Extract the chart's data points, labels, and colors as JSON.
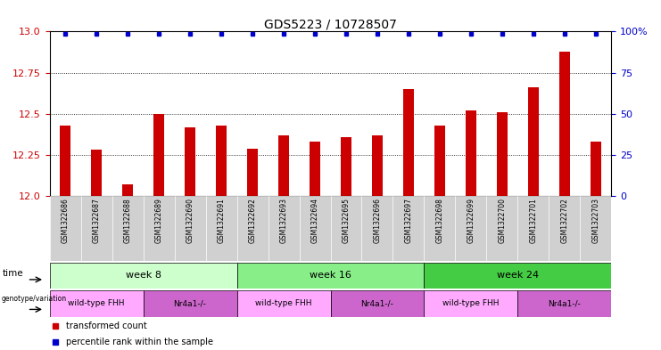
{
  "title": "GDS5223 / 10728507",
  "samples": [
    "GSM1322686",
    "GSM1322687",
    "GSM1322688",
    "GSM1322689",
    "GSM1322690",
    "GSM1322691",
    "GSM1322692",
    "GSM1322693",
    "GSM1322694",
    "GSM1322695",
    "GSM1322696",
    "GSM1322697",
    "GSM1322698",
    "GSM1322699",
    "GSM1322700",
    "GSM1322701",
    "GSM1322702",
    "GSM1322703"
  ],
  "bar_values": [
    12.43,
    12.28,
    12.07,
    12.5,
    12.42,
    12.43,
    12.29,
    12.37,
    12.33,
    12.36,
    12.37,
    12.65,
    12.43,
    12.52,
    12.51,
    12.66,
    12.88,
    12.33
  ],
  "percentile_values": [
    100,
    100,
    100,
    100,
    100,
    100,
    100,
    100,
    100,
    100,
    100,
    100,
    100,
    100,
    100,
    100,
    100,
    100
  ],
  "bar_color": "#cc0000",
  "percentile_color": "#0000cc",
  "ylim_left": [
    12.0,
    13.0
  ],
  "ylim_right": [
    0,
    100
  ],
  "yticks_left": [
    12.0,
    12.25,
    12.5,
    12.75,
    13.0
  ],
  "yticks_right": [
    0,
    25,
    50,
    75,
    100
  ],
  "grid_values": [
    12.25,
    12.5,
    12.75
  ],
  "time_groups": [
    {
      "label": "week 8",
      "start": 0,
      "end": 6,
      "color": "#ccffcc"
    },
    {
      "label": "week 16",
      "start": 6,
      "end": 12,
      "color": "#88ee88"
    },
    {
      "label": "week 24",
      "start": 12,
      "end": 18,
      "color": "#44cc44"
    }
  ],
  "geno_groups": [
    {
      "label": "wild-type FHH",
      "start": 0,
      "end": 3,
      "color": "#ffaaff"
    },
    {
      "label": "Nr4a1-/-",
      "start": 3,
      "end": 6,
      "color": "#cc66cc"
    },
    {
      "label": "wild-type FHH",
      "start": 6,
      "end": 9,
      "color": "#ffaaff"
    },
    {
      "label": "Nr4a1-/-",
      "start": 9,
      "end": 12,
      "color": "#cc66cc"
    },
    {
      "label": "wild-type FHH",
      "start": 12,
      "end": 15,
      "color": "#ffaaff"
    },
    {
      "label": "Nr4a1-/-",
      "start": 15,
      "end": 18,
      "color": "#cc66cc"
    }
  ],
  "legend_tc_label": "transformed count",
  "legend_pr_label": "percentile rank within the sample",
  "left_tick_color": "#cc0000",
  "right_tick_color": "#0000cc",
  "background_color": "#ffffff",
  "sample_bg_color": "#d0d0d0"
}
